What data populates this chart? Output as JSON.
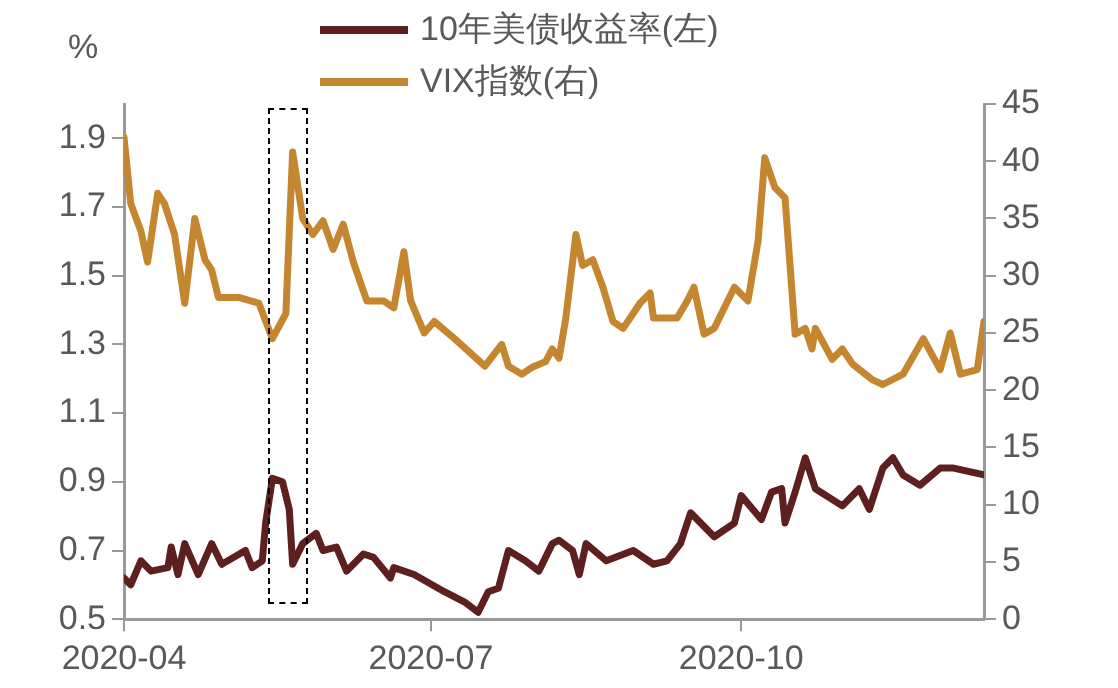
{
  "chart_data": {
    "type": "line",
    "ylabel": "%",
    "legend": "top",
    "grid": false,
    "marker": "none",
    "line_style": "solid",
    "xlim": [
      "2020-04-01",
      "2020-12-12"
    ],
    "xticks": [
      "2020-04",
      "2020-07",
      "2020-10"
    ],
    "ylim": [
      0.5,
      2.0
    ],
    "yticks": [
      0.5,
      0.7,
      0.9,
      1.1,
      1.3,
      1.5,
      1.7,
      1.9
    ],
    "y2lim": [
      0,
      45
    ],
    "y2ticks": [
      0,
      5,
      10,
      15,
      20,
      25,
      30,
      35,
      40,
      45
    ],
    "series": [
      {
        "name": "10年美债收益率(左)",
        "color": "#5e1f1f",
        "x": [
          "2020-04-01",
          "2020-04-03",
          "2020-04-06",
          "2020-04-09",
          "2020-04-14",
          "2020-04-15",
          "2020-04-17",
          "2020-04-19",
          "2020-04-23",
          "2020-04-27",
          "2020-04-30",
          "2020-05-07",
          "2020-05-09",
          "2020-05-12",
          "2020-05-13",
          "2020-05-15",
          "2020-05-18",
          "2020-05-20",
          "2020-05-21",
          "2020-05-24",
          "2020-05-28",
          "2020-05-30",
          "2020-06-03",
          "2020-06-06",
          "2020-06-11",
          "2020-06-14",
          "2020-06-19",
          "2020-06-20",
          "2020-06-26",
          "2020-07-05",
          "2020-07-11",
          "2020-07-15",
          "2020-07-18",
          "2020-07-21",
          "2020-07-24",
          "2020-07-29",
          "2020-08-02",
          "2020-08-06",
          "2020-08-08",
          "2020-08-12",
          "2020-08-14",
          "2020-08-16",
          "2020-08-22",
          "2020-08-30",
          "2020-09-05",
          "2020-09-09",
          "2020-09-13",
          "2020-09-16",
          "2020-09-23",
          "2020-09-29",
          "2020-10-01",
          "2020-10-07",
          "2020-10-10",
          "2020-10-13",
          "2020-10-14",
          "2020-10-17",
          "2020-10-20",
          "2020-10-23",
          "2020-10-31",
          "2020-11-05",
          "2020-11-08",
          "2020-11-12",
          "2020-11-15",
          "2020-11-18",
          "2020-11-23",
          "2020-11-29",
          "2020-12-03",
          "2020-12-12"
        ],
        "values": [
          0.62,
          0.6,
          0.67,
          0.64,
          0.65,
          0.71,
          0.63,
          0.72,
          0.63,
          0.72,
          0.66,
          0.7,
          0.65,
          0.67,
          0.78,
          0.91,
          0.9,
          0.82,
          0.66,
          0.72,
          0.75,
          0.7,
          0.71,
          0.64,
          0.69,
          0.68,
          0.62,
          0.65,
          0.63,
          0.58,
          0.55,
          0.52,
          0.58,
          0.59,
          0.7,
          0.67,
          0.64,
          0.72,
          0.73,
          0.7,
          0.63,
          0.72,
          0.67,
          0.7,
          0.66,
          0.67,
          0.72,
          0.81,
          0.74,
          0.78,
          0.86,
          0.79,
          0.87,
          0.88,
          0.78,
          0.87,
          0.97,
          0.88,
          0.83,
          0.88,
          0.82,
          0.94,
          0.97,
          0.92,
          0.89,
          0.94,
          0.94,
          0.92
        ]
      },
      {
        "name": "VIX指数(右)",
        "color": "#c4862f",
        "axis": "y2",
        "x": [
          "2020-04-01",
          "2020-04-03",
          "2020-04-06",
          "2020-04-08",
          "2020-04-11",
          "2020-04-13",
          "2020-04-16",
          "2020-04-19",
          "2020-04-22",
          "2020-04-25",
          "2020-04-27",
          "2020-04-29",
          "2020-05-05",
          "2020-05-11",
          "2020-05-15",
          "2020-05-19",
          "2020-05-21",
          "2020-05-24",
          "2020-05-27",
          "2020-05-30",
          "2020-06-02",
          "2020-06-05",
          "2020-06-08",
          "2020-06-12",
          "2020-06-17",
          "2020-06-20",
          "2020-06-23",
          "2020-06-25",
          "2020-06-29",
          "2020-07-02",
          "2020-07-08",
          "2020-07-17",
          "2020-07-22",
          "2020-07-24",
          "2020-07-28",
          "2020-07-31",
          "2020-08-04",
          "2020-08-06",
          "2020-08-08",
          "2020-08-10",
          "2020-08-13",
          "2020-08-15",
          "2020-08-18",
          "2020-08-21",
          "2020-08-24",
          "2020-08-27",
          "2020-09-01",
          "2020-09-04",
          "2020-09-05",
          "2020-09-12",
          "2020-09-15",
          "2020-09-17",
          "2020-09-20",
          "2020-09-23",
          "2020-09-29",
          "2020-10-03",
          "2020-10-06",
          "2020-10-08",
          "2020-10-11",
          "2020-10-14",
          "2020-10-17",
          "2020-10-20",
          "2020-10-22",
          "2020-10-23",
          "2020-10-28",
          "2020-10-31",
          "2020-11-03",
          "2020-11-09",
          "2020-11-12",
          "2020-11-18",
          "2020-11-24",
          "2020-11-29",
          "2020-12-02",
          "2020-12-05",
          "2020-12-10",
          "2020-12-12"
        ],
        "values": [
          42.1,
          36.3,
          33.9,
          31.2,
          37.2,
          36.3,
          33.6,
          27.6,
          35.0,
          31.4,
          30.5,
          28.1,
          28.1,
          27.6,
          24.5,
          26.7,
          40.8,
          35.0,
          33.6,
          34.8,
          32.3,
          34.5,
          31.2,
          27.8,
          27.8,
          27.2,
          32.1,
          27.8,
          25.0,
          26.0,
          24.5,
          22.1,
          24.0,
          22.1,
          21.4,
          22.0,
          22.5,
          23.6,
          22.8,
          26.3,
          33.6,
          30.9,
          31.4,
          29.0,
          26.0,
          25.4,
          27.6,
          28.5,
          26.3,
          26.3,
          27.8,
          29.0,
          24.9,
          25.4,
          29.0,
          27.8,
          33.0,
          40.3,
          37.7,
          36.8,
          24.9,
          25.4,
          23.6,
          25.4,
          22.7,
          23.6,
          22.3,
          20.9,
          20.5,
          21.4,
          24.5,
          21.8,
          25.0,
          21.4,
          21.8,
          26.0
        ]
      }
    ]
  }
}
